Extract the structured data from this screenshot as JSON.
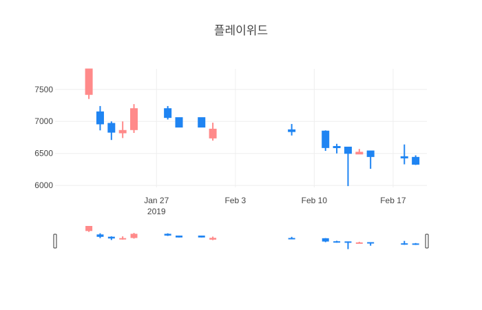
{
  "chart_data": {
    "type": "candlestick",
    "title": "플레이위드",
    "xlabel": "",
    "ylabel": "",
    "ylim": [
      5970,
      7820
    ],
    "xlim": [
      "2019-01-18",
      "2019-02-20"
    ],
    "y_ticks": [
      6000,
      6500,
      7000,
      7500
    ],
    "x_ticks": [
      {
        "date": "2019-01-27",
        "label": "Jan 27",
        "sublabel": "2019"
      },
      {
        "date": "2019-02-03",
        "label": "Feb 3",
        "sublabel": ""
      },
      {
        "date": "2019-02-10",
        "label": "Feb 10",
        "sublabel": ""
      },
      {
        "date": "2019-02-17",
        "label": "Feb 17",
        "sublabel": ""
      }
    ],
    "increasing_color": "#ff8a8a",
    "decreasing_color": "#1f84f2",
    "grid": true,
    "rangeslider": true,
    "candles": [
      {
        "date": "2019-01-21",
        "open": 7420,
        "high": 7820,
        "low": 7350,
        "close": 7820
      },
      {
        "date": "2019-01-22",
        "open": 7150,
        "high": 7240,
        "low": 6860,
        "close": 6960
      },
      {
        "date": "2019-01-23",
        "open": 6970,
        "high": 7000,
        "low": 6710,
        "close": 6830
      },
      {
        "date": "2019-01-24",
        "open": 6820,
        "high": 7000,
        "low": 6740,
        "close": 6860
      },
      {
        "date": "2019-01-25",
        "open": 6870,
        "high": 7270,
        "low": 6820,
        "close": 7200
      },
      {
        "date": "2019-01-28",
        "open": 7200,
        "high": 7240,
        "low": 7030,
        "close": 7060
      },
      {
        "date": "2019-01-29",
        "open": 7060,
        "high": 7060,
        "low": 6910,
        "close": 6910
      },
      {
        "date": "2019-01-31",
        "open": 7060,
        "high": 7060,
        "low": 6910,
        "close": 6910
      },
      {
        "date": "2019-02-01",
        "open": 6740,
        "high": 6980,
        "low": 6700,
        "close": 6880
      },
      {
        "date": "2019-02-08",
        "open": 6870,
        "high": 6960,
        "low": 6780,
        "close": 6840
      },
      {
        "date": "2019-02-11",
        "open": 6850,
        "high": 6860,
        "low": 6540,
        "close": 6590
      },
      {
        "date": "2019-02-12",
        "open": 6610,
        "high": 6650,
        "low": 6500,
        "close": 6590
      },
      {
        "date": "2019-02-13",
        "open": 6600,
        "high": 6600,
        "low": 5990,
        "close": 6500
      },
      {
        "date": "2019-02-14",
        "open": 6490,
        "high": 6570,
        "low": 6490,
        "close": 6520
      },
      {
        "date": "2019-02-15",
        "open": 6540,
        "high": 6540,
        "low": 6260,
        "close": 6450
      },
      {
        "date": "2019-02-18",
        "open": 6450,
        "high": 6640,
        "low": 6330,
        "close": 6430
      },
      {
        "date": "2019-02-19",
        "open": 6440,
        "high": 6470,
        "low": 6320,
        "close": 6330
      }
    ]
  }
}
